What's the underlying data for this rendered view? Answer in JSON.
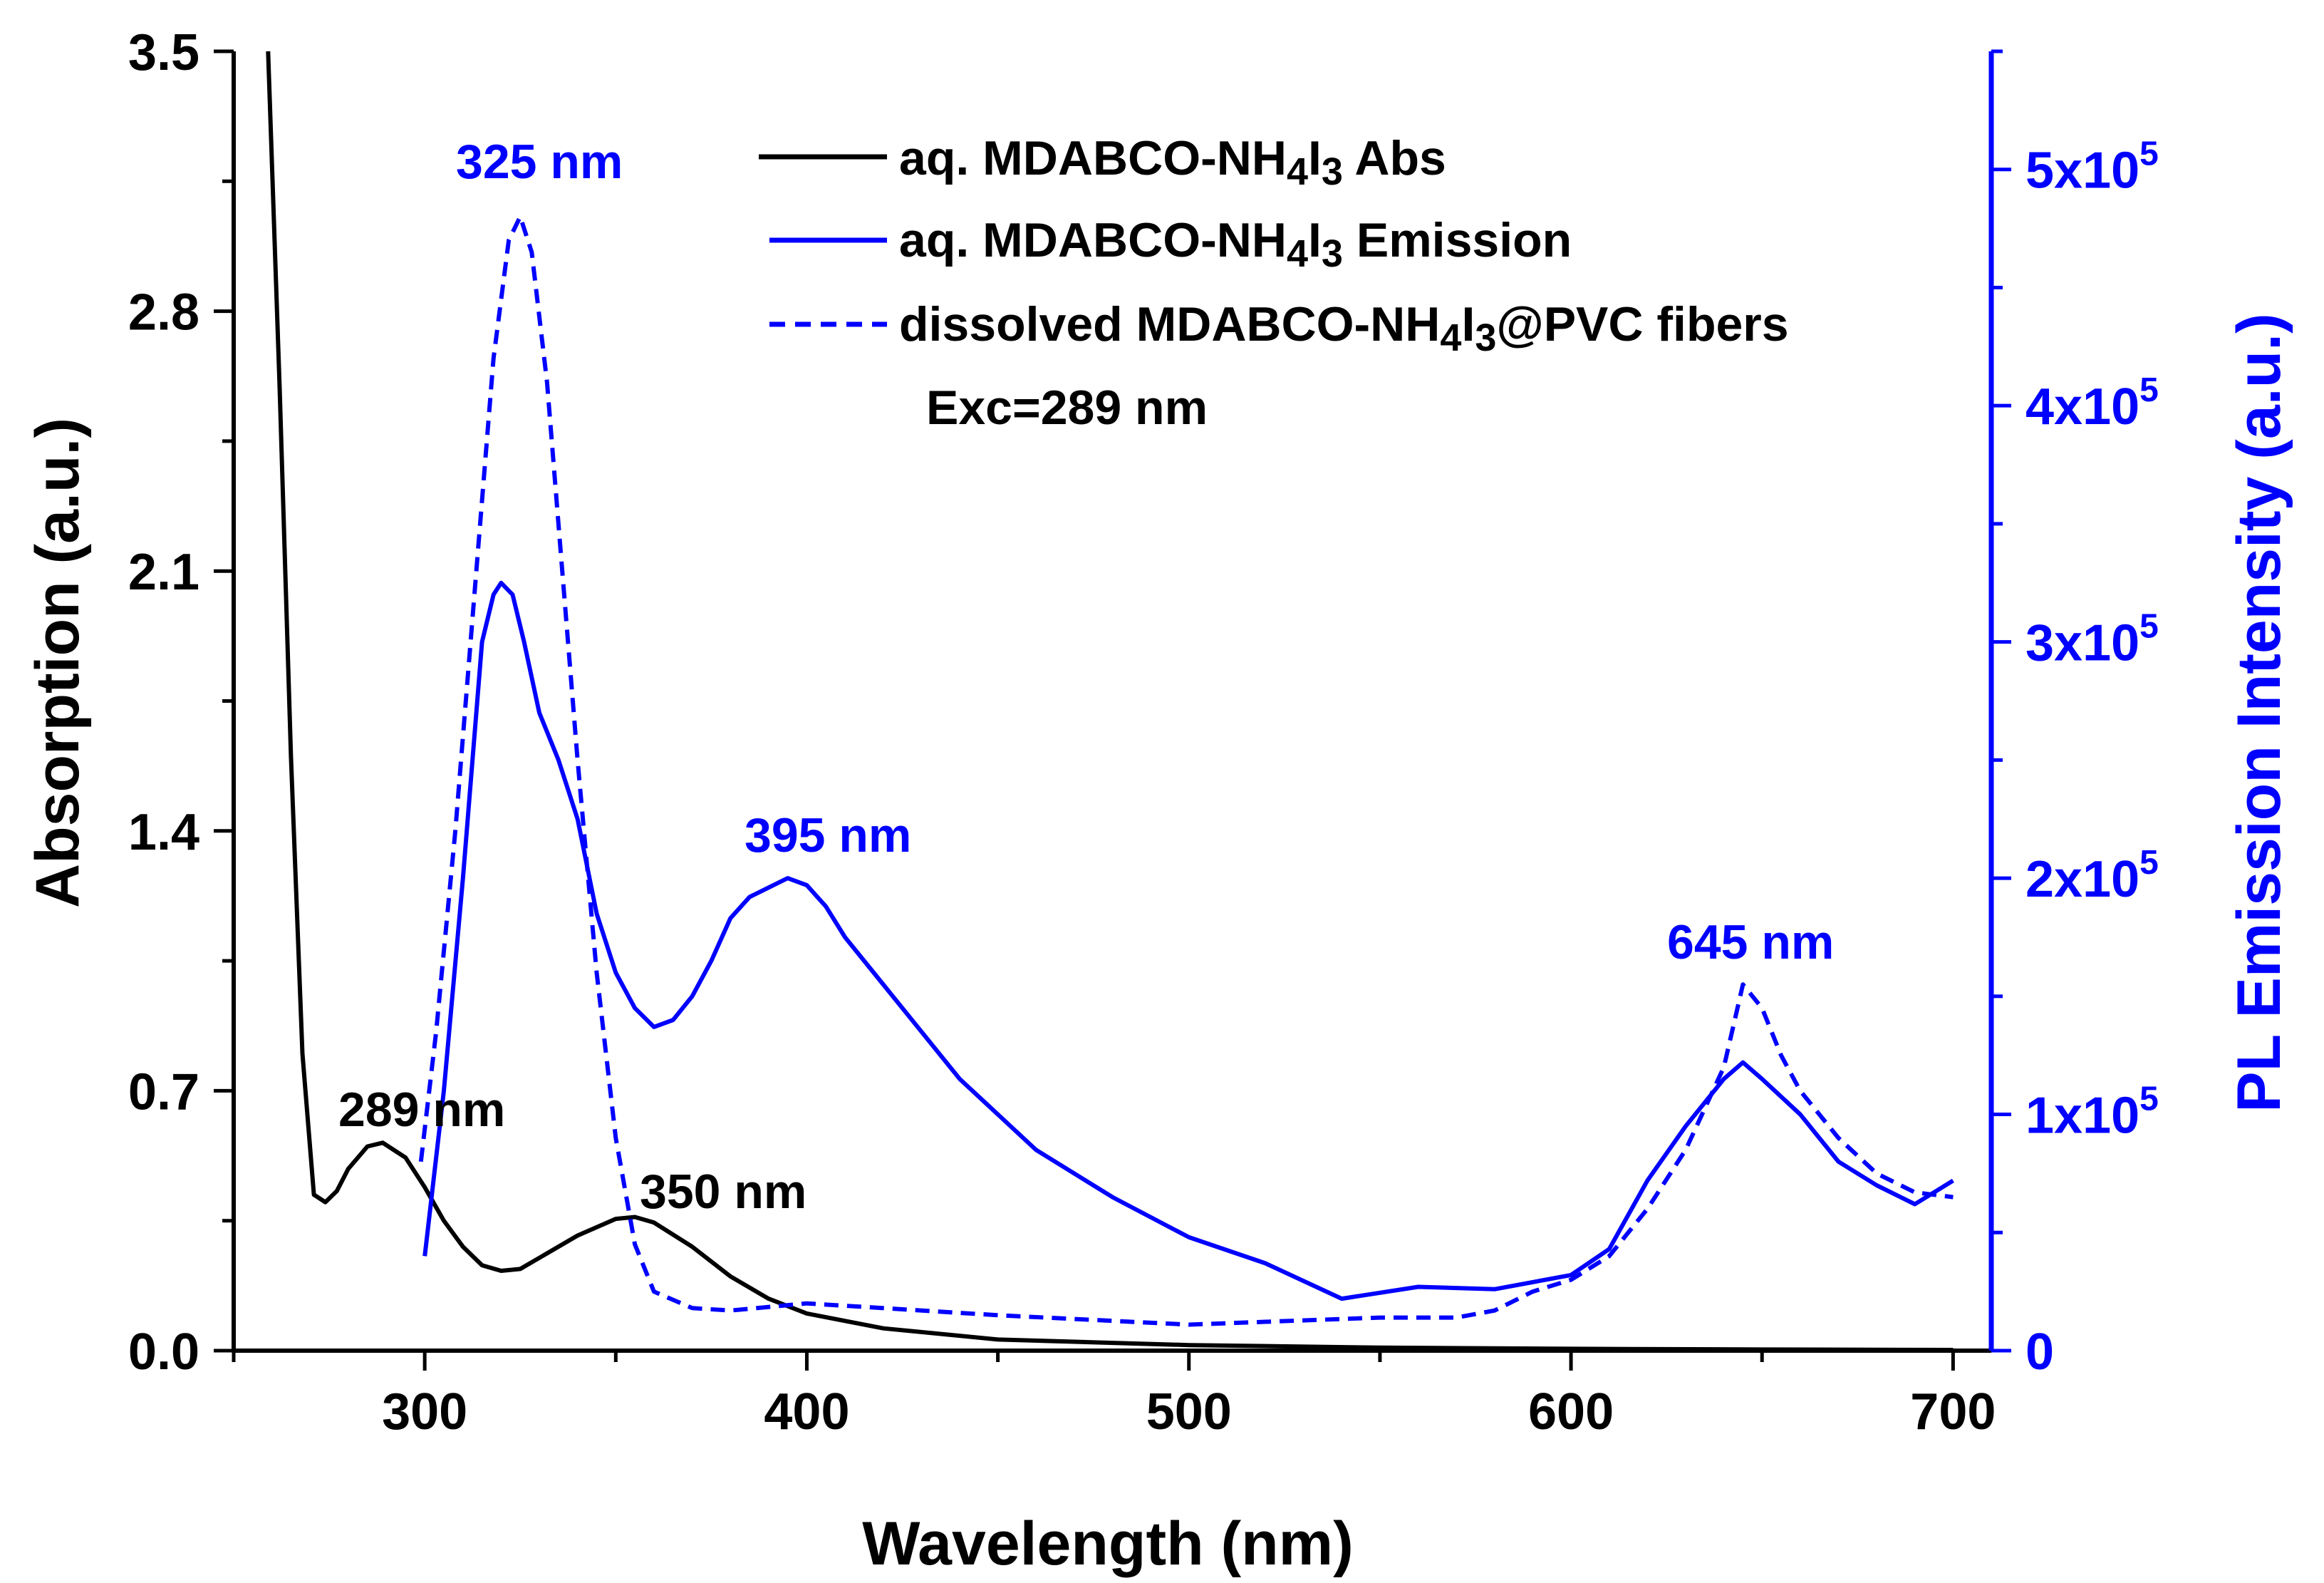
{
  "chart_data": {
    "type": "line",
    "xlabel": "Wavelength (nm)",
    "ylabel_left": "Absorption (a.u.)",
    "ylabel_right": "PL Emission  Intensity (a.u.)",
    "xlim": [
      250,
      710
    ],
    "ylim_left": [
      0,
      3.5
    ],
    "ylim_right": [
      0,
      550000
    ],
    "x_ticks": [
      300,
      400,
      500,
      600,
      700
    ],
    "y_left_ticks": [
      {
        "value": 0.0,
        "label": "0.0"
      },
      {
        "value": 0.7,
        "label": "0.7"
      },
      {
        "value": 1.4,
        "label": "1.4"
      },
      {
        "value": 2.1,
        "label": "2.1"
      },
      {
        "value": 2.8,
        "label": "2.8"
      },
      {
        "value": 3.5,
        "label": "3.5"
      }
    ],
    "y_right_ticks": [
      {
        "value": 0,
        "mant": "0",
        "exp": ""
      },
      {
        "value": 100000,
        "mant": "1x10",
        "exp": "5"
      },
      {
        "value": 200000,
        "mant": "2x10",
        "exp": "5"
      },
      {
        "value": 300000,
        "mant": "3x10",
        "exp": "5"
      },
      {
        "value": 400000,
        "mant": "4x10",
        "exp": "5"
      },
      {
        "value": 500000,
        "mant": "5x10",
        "exp": "5"
      }
    ],
    "series": [
      {
        "name": "aq. MDABCO-NH4I3 Abs",
        "axis": "left",
        "color": "#000000",
        "style": "solid",
        "x": [
          259,
          262,
          265,
          268,
          271,
          274,
          277,
          280,
          285,
          289,
          295,
          300,
          305,
          310,
          315,
          320,
          325,
          330,
          340,
          350,
          355,
          360,
          370,
          380,
          390,
          400,
          420,
          450,
          500,
          550,
          600,
          650,
          700
        ],
        "y": [
          3.5,
          2.6,
          1.6,
          0.8,
          0.42,
          0.4,
          0.43,
          0.49,
          0.55,
          0.56,
          0.52,
          0.44,
          0.35,
          0.28,
          0.23,
          0.215,
          0.22,
          0.25,
          0.31,
          0.355,
          0.36,
          0.345,
          0.28,
          0.2,
          0.14,
          0.1,
          0.06,
          0.03,
          0.015,
          0.008,
          0.005,
          0.003,
          0.002
        ]
      },
      {
        "name": "aq. MDABCO-NH4I3 Emission",
        "axis": "right",
        "color": "#0000ff",
        "style": "solid",
        "x": [
          300,
          305,
          310,
          315,
          318,
          320,
          323,
          326,
          330,
          335,
          340,
          345,
          350,
          355,
          360,
          365,
          370,
          375,
          380,
          385,
          390,
          395,
          400,
          405,
          410,
          420,
          440,
          460,
          480,
          500,
          520,
          540,
          560,
          580,
          600,
          610,
          620,
          630,
          640,
          645,
          650,
          660,
          670,
          680,
          690,
          700
        ],
        "y": [
          40000,
          110000,
          200000,
          300000,
          320000,
          325000,
          320000,
          300000,
          270000,
          250000,
          225000,
          185000,
          160000,
          145000,
          137000,
          140000,
          150000,
          165000,
          183000,
          192000,
          196000,
          200000,
          197000,
          188000,
          175000,
          155000,
          115000,
          85000,
          65000,
          48000,
          37000,
          22000,
          27000,
          26000,
          32000,
          43000,
          72000,
          95000,
          115000,
          122000,
          115000,
          100000,
          80000,
          70000,
          62000,
          72000
        ]
      },
      {
        "name": "dissolved MDABCO-NH4I3@PVC fibers",
        "axis": "right",
        "color": "#0000ff",
        "style": "dashed",
        "x": [
          299,
          303,
          308,
          313,
          318,
          322,
          325,
          328,
          332,
          336,
          340,
          345,
          350,
          355,
          360,
          370,
          380,
          400,
          450,
          500,
          550,
          570,
          580,
          590,
          600,
          610,
          620,
          630,
          640,
          645,
          650,
          655,
          660,
          670,
          680,
          690,
          700
        ],
        "y": [
          80000,
          135000,
          220000,
          320000,
          420000,
          470000,
          480000,
          465000,
          410000,
          330000,
          250000,
          160000,
          90000,
          45000,
          25000,
          18000,
          17000,
          20000,
          15000,
          11000,
          14000,
          14000,
          17000,
          25000,
          30000,
          40000,
          60000,
          85000,
          120000,
          155000,
          145000,
          125000,
          110000,
          90000,
          75000,
          67000,
          65000
        ]
      }
    ],
    "annotations": [
      {
        "text": "325 nm",
        "color": "#0000ff"
      },
      {
        "text": "395 nm",
        "color": "#0000ff"
      },
      {
        "text": "645 nm",
        "color": "#0000ff"
      },
      {
        "text": "289 nm",
        "color": "#000000"
      },
      {
        "text": "350 nm",
        "color": "#000000"
      }
    ],
    "legend": {
      "placement": "top-center",
      "entries": [
        {
          "prefix": "aq. MDABCO-NH",
          "sub1": "4",
          "mid": "I",
          "sub2": "3",
          "suffix": " Abs"
        },
        {
          "prefix": "aq. MDABCO-NH",
          "sub1": "4",
          "mid": "I",
          "sub2": "3",
          "suffix": " Emission"
        },
        {
          "prefix": "dissolved MDABCO-NH",
          "sub1": "4",
          "mid": "I",
          "sub2": "3",
          "suffix": "@PVC fibers"
        }
      ],
      "note": "Exc=289 nm"
    }
  }
}
